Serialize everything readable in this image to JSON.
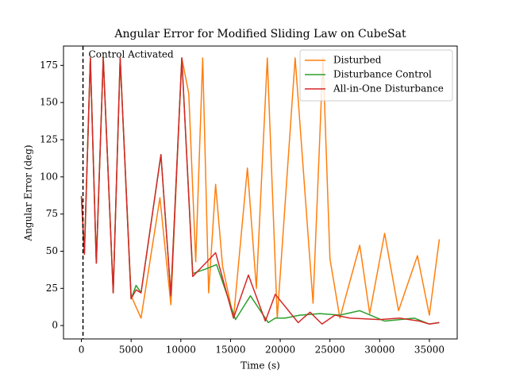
{
  "chart_data": {
    "type": "line",
    "title": "Angular Error for Modified Sliding Law on CubeSat",
    "x_label": "Time (s)",
    "y_label": "Angular Error (deg)",
    "xlim": [
      -1800,
      37800
    ],
    "ylim": [
      -9,
      188
    ],
    "xticks": [
      0,
      5000,
      10000,
      15000,
      20000,
      25000,
      30000,
      35000
    ],
    "yticks": [
      0,
      25,
      50,
      75,
      100,
      125,
      150,
      175
    ],
    "vline": 160,
    "annotation": "Control Activated",
    "legend": "upper right",
    "series": [
      {
        "name": "Disturbed",
        "color": "#ff7f0e",
        "x": [
          0,
          300,
          900,
          1500,
          2200,
          3200,
          3900,
          5000,
          6000,
          7900,
          9000,
          10100,
          10800,
          11500,
          12200,
          12800,
          13500,
          14200,
          15300,
          16700,
          17600,
          18700,
          19700,
          21500,
          23300,
          24300,
          25000,
          26000,
          28000,
          29000,
          30500,
          31900,
          33800,
          35000,
          36000
        ],
        "values": [
          87,
          48,
          180,
          42,
          180,
          22,
          180,
          20,
          5,
          86,
          14,
          180,
          156,
          43,
          180,
          22,
          95,
          40,
          5,
          106,
          25,
          180,
          5,
          180,
          15,
          180,
          45,
          5,
          54,
          8,
          62,
          10,
          47,
          7,
          58
        ]
      },
      {
        "name": "Disturbance Control",
        "color": "#2ca02c",
        "x": [
          0,
          300,
          900,
          1500,
          2200,
          3200,
          3900,
          5000,
          5500,
          6000,
          8000,
          9000,
          10100,
          11200,
          12500,
          13600,
          15500,
          17000,
          18800,
          19500,
          20500,
          22000,
          24000,
          26000,
          28000,
          30500,
          33500,
          35000,
          36000
        ],
        "values": [
          87,
          48,
          180,
          42,
          180,
          22,
          180,
          18,
          27,
          22,
          115,
          20,
          180,
          35,
          38,
          41,
          4,
          20,
          2,
          5,
          5,
          7,
          8,
          7,
          10,
          3,
          5,
          1,
          2
        ]
      },
      {
        "name": "All-in-One Disturbance",
        "color": "#d62728",
        "x": [
          0,
          300,
          900,
          1500,
          2200,
          3200,
          3900,
          5000,
          5500,
          6000,
          8000,
          9000,
          10100,
          11200,
          13500,
          15300,
          16800,
          18500,
          19500,
          21800,
          23000,
          24200,
          25500,
          27000,
          30000,
          32000,
          34000,
          35000,
          36000
        ],
        "values": [
          87,
          48,
          180,
          42,
          180,
          22,
          180,
          18,
          24,
          22,
          115,
          20,
          180,
          33,
          49,
          5,
          34,
          3,
          21,
          2,
          9,
          1,
          7,
          5,
          4,
          5,
          3,
          1,
          2
        ]
      }
    ]
  }
}
